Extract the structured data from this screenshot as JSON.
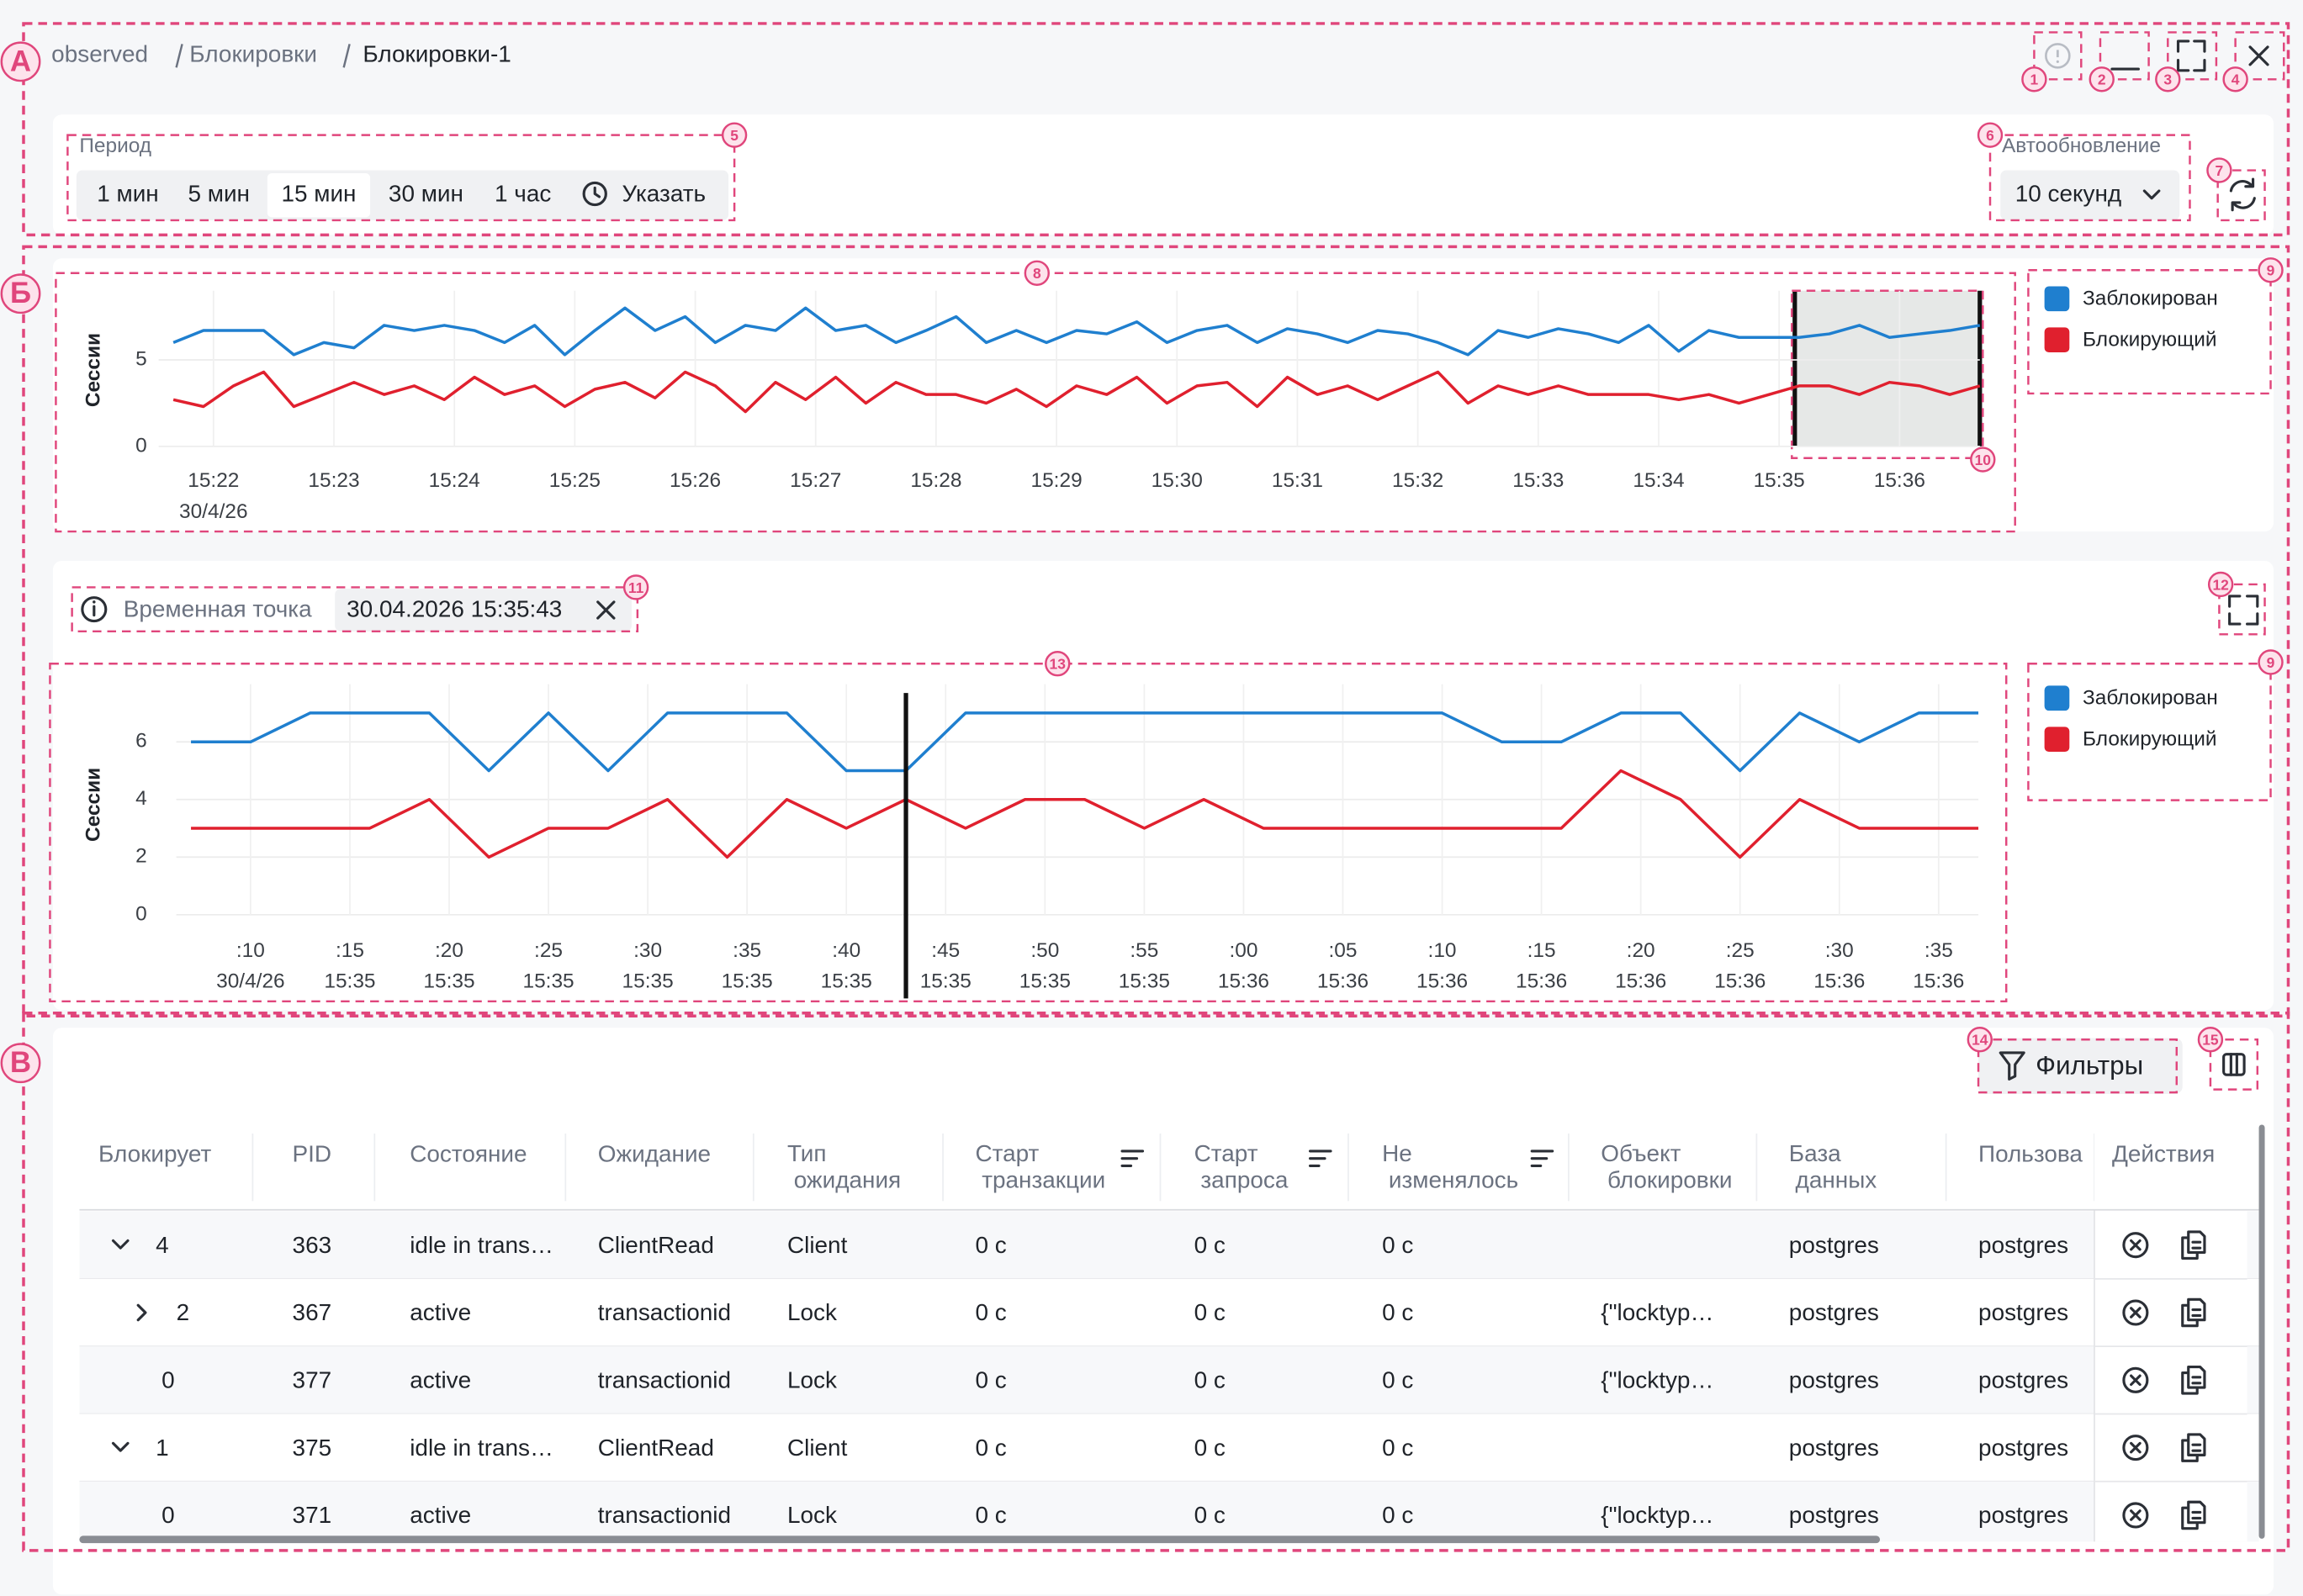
{
  "breadcrumbs": [
    "observed",
    "Блокировки",
    "Блокировки-1"
  ],
  "annotations": [
    "А",
    "Б",
    "В",
    "1",
    "2",
    "3",
    "4",
    "5",
    "6",
    "7",
    "8",
    "9",
    "10",
    "11",
    "12",
    "13",
    "9",
    "14",
    "15"
  ],
  "period": {
    "label": "Период",
    "options": [
      "1 мин",
      "5 мин",
      "15 мин",
      "30 мин",
      "1 час",
      "Указать"
    ],
    "selected": 2
  },
  "autorefresh": {
    "label": "Автообновление",
    "value": "10 секунд"
  },
  "timepoint": {
    "label": "Временная точка",
    "value": "30.04.2026 15:35:43"
  },
  "filters_button": "Фильтры",
  "chart_data": [
    {
      "type": "line",
      "y_label": "Сессии",
      "x": [
        "15:21:40",
        "15:21:55",
        "15:22:10",
        "15:22:25",
        "15:22:40",
        "15:22:55",
        "15:23:10",
        "15:23:25",
        "15:23:40",
        "15:23:55",
        "15:24:10",
        "15:24:25",
        "15:24:40",
        "15:24:55",
        "15:25:10",
        "15:25:25",
        "15:25:40",
        "15:25:55",
        "15:26:10",
        "15:26:25",
        "15:26:40",
        "15:26:55",
        "15:27:10",
        "15:27:25",
        "15:27:40",
        "15:27:55",
        "15:28:10",
        "15:28:25",
        "15:28:40",
        "15:28:55",
        "15:29:10",
        "15:29:25",
        "15:29:40",
        "15:29:55",
        "15:30:10",
        "15:30:25",
        "15:30:40",
        "15:30:55",
        "15:31:10",
        "15:31:25",
        "15:31:40",
        "15:31:55",
        "15:32:10",
        "15:32:25",
        "15:32:40",
        "15:32:55",
        "15:33:10",
        "15:33:25",
        "15:33:40",
        "15:33:55",
        "15:34:10",
        "15:34:25",
        "15:34:40",
        "15:34:55",
        "15:35:10",
        "15:35:25",
        "15:35:40",
        "15:35:55",
        "15:36:10",
        "15:36:25",
        "15:36:40"
      ],
      "xlim": [
        "15:21:40",
        "15:36:40"
      ],
      "xticks": [
        "15:22",
        "15:23",
        "15:24",
        "15:25",
        "15:26",
        "15:27",
        "15:28",
        "15:29",
        "15:30",
        "15:31",
        "15:32",
        "15:33",
        "15:34",
        "15:35",
        "15:36"
      ],
      "x_sublabel": "30/4/26",
      "ylim": [
        0,
        9
      ],
      "yticks": [
        0,
        5
      ],
      "grid": true,
      "series": [
        {
          "name": "Заблокирован",
          "color": "#1f7fcf",
          "values": [
            6,
            6.7,
            6.7,
            6.7,
            5.3,
            6,
            5.7,
            7,
            6.7,
            7,
            6.7,
            6,
            7,
            5.3,
            6.7,
            8,
            6.7,
            7.5,
            6,
            7,
            6.7,
            8,
            6.7,
            7,
            6,
            6.7,
            7.5,
            6,
            6.7,
            6,
            6.7,
            6.5,
            7.2,
            6,
            6.7,
            7,
            6,
            6.8,
            6.5,
            6,
            6.7,
            6.5,
            6,
            5.3,
            6.7,
            6.3,
            6.8,
            6.5,
            6,
            7,
            5.5,
            6.7,
            6.3,
            6.3,
            6.3,
            6.5,
            7,
            6.3,
            6.5,
            6.7,
            7
          ]
        },
        {
          "name": "Блокирующий",
          "color": "#e0202e",
          "values": [
            2.7,
            2.3,
            3.5,
            4.3,
            2.3,
            3,
            3.7,
            3,
            3.5,
            2.7,
            4,
            3,
            3.5,
            2.3,
            3.3,
            3.7,
            2.8,
            4.3,
            3.5,
            2,
            3.7,
            2.7,
            4,
            2.5,
            3.7,
            3,
            3,
            2.5,
            3.3,
            2.3,
            3.5,
            3,
            4,
            2.5,
            3.5,
            3.7,
            2.3,
            4,
            3,
            3.5,
            2.7,
            3.5,
            4.3,
            2.5,
            3.5,
            3,
            3.5,
            3,
            3,
            3,
            2.7,
            3,
            2.5,
            3,
            3.5,
            3.5,
            3,
            3.7,
            3.5,
            3,
            3.5
          ]
        }
      ]
    },
    {
      "type": "line",
      "y_label": "Сессии",
      "x": [
        "15:35:07",
        "15:35:10",
        "15:35:13",
        "15:35:16",
        "15:35:19",
        "15:35:22",
        "15:35:25",
        "15:35:28",
        "15:35:31",
        "15:35:34",
        "15:35:37",
        "15:35:40",
        "15:35:43",
        "15:35:46",
        "15:35:49",
        "15:35:52",
        "15:35:55",
        "15:35:58",
        "15:36:01",
        "15:36:04",
        "15:36:07",
        "15:36:10",
        "15:36:13",
        "15:36:16",
        "15:36:19",
        "15:36:22",
        "15:36:25",
        "15:36:28",
        "15:36:31",
        "15:36:34",
        "15:36:37"
      ],
      "xlim": [
        "15:35:07",
        "15:36:37"
      ],
      "xticks": [
        {
          "value": "15:35:10",
          "label": ":10"
        },
        {
          "value": "15:35:15",
          "label": ":15"
        },
        {
          "value": "15:35:20",
          "label": ":20"
        },
        {
          "value": "15:35:25",
          "label": ":25"
        },
        {
          "value": "15:35:30",
          "label": ":30"
        },
        {
          "value": "15:35:35",
          "label": ":35"
        },
        {
          "value": "15:35:40",
          "label": ":40"
        },
        {
          "value": "15:35:45",
          "label": ":45"
        },
        {
          "value": "15:35:50",
          "label": ":50"
        },
        {
          "value": "15:35:55",
          "label": ":55"
        },
        {
          "value": "15:36:00",
          "label": ":00"
        },
        {
          "value": "15:36:05",
          "label": ":05"
        },
        {
          "value": "15:36:10",
          "label": ":10"
        },
        {
          "value": "15:36:15",
          "label": ":15"
        },
        {
          "value": "15:36:20",
          "label": ":20"
        },
        {
          "value": "15:36:25",
          "label": ":25"
        },
        {
          "value": "15:36:30",
          "label": ":30"
        },
        {
          "value": "15:36:35",
          "label": ":35"
        }
      ],
      "x_sublabels": [
        "30/4/26",
        "15:35",
        "15:35",
        "15:35",
        "15:35",
        "15:35",
        "15:35",
        "15:35",
        "15:35",
        "15:35",
        "15:36",
        "15:36",
        "15:36",
        "15:36",
        "15:36",
        "15:36",
        "15:36",
        "15:36"
      ],
      "ylim": [
        0,
        8
      ],
      "yticks": [
        0,
        2,
        4,
        6
      ],
      "grid": true,
      "series": [
        {
          "name": "Заблокирован",
          "color": "#1f7fcf",
          "values": [
            6,
            6,
            7,
            7,
            7,
            5,
            7,
            5,
            7,
            7,
            7,
            5,
            5,
            7,
            7,
            7,
            7,
            7,
            7,
            7,
            7,
            7,
            6,
            6,
            7,
            7,
            5,
            7,
            6,
            7,
            7
          ]
        },
        {
          "name": "Блокирующий",
          "color": "#e0202e",
          "values": [
            3,
            3,
            3,
            3,
            4,
            2,
            3,
            3,
            4,
            2,
            4,
            3,
            4,
            3,
            4,
            4,
            3,
            4,
            3,
            3,
            3,
            3,
            3,
            3,
            5,
            4,
            2,
            4,
            3,
            3,
            3
          ]
        }
      ]
    }
  ],
  "table": {
    "columns": [
      "Блокирует",
      "PID",
      "Состояние",
      "Ожидание",
      "Тип ожидания",
      "Старт транзакции",
      "Старт запроса",
      "Не изменялось",
      "Объект блокировки",
      "База данных",
      "Пользова",
      "Действия"
    ],
    "rows": [
      [
        "4",
        "363",
        "idle in trans…",
        "ClientRead",
        "Client",
        "0 с",
        "0 с",
        "0 с",
        null,
        "postgres",
        "postgres"
      ],
      [
        "2",
        "367",
        "active",
        "transactionid",
        "Lock",
        "0 с",
        "0 с",
        "0 с",
        "{\"locktyp…",
        "postgres",
        "postgres"
      ],
      [
        "0",
        "377",
        "active",
        "transactionid",
        "Lock",
        "0 с",
        "0 с",
        "0 с",
        "{\"locktyp…",
        "postgres",
        "postgres"
      ],
      [
        "1",
        "375",
        "idle in trans…",
        "ClientRead",
        "Client",
        "0 с",
        "0 с",
        "0 с",
        null,
        "postgres",
        "postgres"
      ],
      [
        "0",
        "371",
        "active",
        "transactionid",
        "Lock",
        "0 с",
        "0 с",
        "0 с",
        "{\"locktyp…",
        "postgres",
        "postgres"
      ]
    ]
  }
}
